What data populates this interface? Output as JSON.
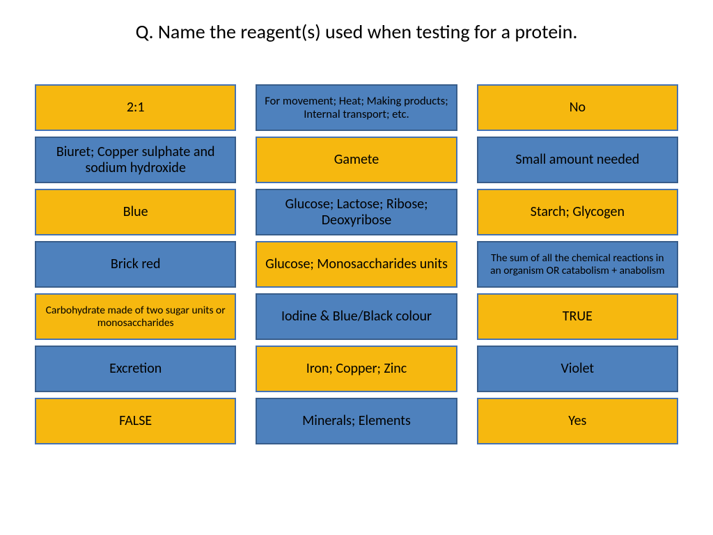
{
  "title": "Q. Name the reagent(s) used when testing for a protein.",
  "colors": {
    "yellow_bg": "#f6b80f",
    "yellow_border": "#4472b4",
    "blue_bg": "#4e81bd",
    "blue_border": "#385d8a"
  },
  "columns": [
    [
      {
        "text": "2:1",
        "bg": "#f6b80f",
        "border": "#4472b4",
        "size": "normal"
      },
      {
        "text": "Biuret; Copper sulphate and sodium hydroxide",
        "bg": "#4e81bd",
        "border": "#385d8a",
        "size": "normal"
      },
      {
        "text": "Blue",
        "bg": "#f6b80f",
        "border": "#4472b4",
        "size": "normal"
      },
      {
        "text": "Brick red",
        "bg": "#4e81bd",
        "border": "#385d8a",
        "size": "normal"
      },
      {
        "text": "Carbohydrate made of two sugar units or monosaccharides",
        "bg": "#f6b80f",
        "border": "#4472b4",
        "size": "xsmall"
      },
      {
        "text": "Excretion",
        "bg": "#4e81bd",
        "border": "#385d8a",
        "size": "normal"
      },
      {
        "text": "FALSE",
        "bg": "#f6b80f",
        "border": "#4472b4",
        "size": "normal"
      }
    ],
    [
      {
        "text": "For movement; Heat; Making products; Internal transport; etc.",
        "bg": "#4e81bd",
        "border": "#385d8a",
        "size": "small"
      },
      {
        "text": "Gamete",
        "bg": "#f6b80f",
        "border": "#4472b4",
        "size": "normal"
      },
      {
        "text": "Glucose; Lactose; Ribose; Deoxyribose",
        "bg": "#4e81bd",
        "border": "#385d8a",
        "size": "normal"
      },
      {
        "text": "Glucose; Monosaccharides units",
        "bg": "#f6b80f",
        "border": "#4472b4",
        "size": "normal"
      },
      {
        "text": "Iodine & Blue/Black colour",
        "bg": "#4e81bd",
        "border": "#385d8a",
        "size": "normal"
      },
      {
        "text": "Iron; Copper; Zinc",
        "bg": "#f6b80f",
        "border": "#4472b4",
        "size": "normal"
      },
      {
        "text": "Minerals; Elements",
        "bg": "#4e81bd",
        "border": "#385d8a",
        "size": "normal"
      }
    ],
    [
      {
        "text": "No",
        "bg": "#f6b80f",
        "border": "#4472b4",
        "size": "normal"
      },
      {
        "text": "Small amount needed",
        "bg": "#4e81bd",
        "border": "#385d8a",
        "size": "normal"
      },
      {
        "text": "Starch; Glycogen",
        "bg": "#f6b80f",
        "border": "#4472b4",
        "size": "normal"
      },
      {
        "text": "The sum of all the chemical reactions in an organism OR catabolism + anabolism",
        "bg": "#4e81bd",
        "border": "#385d8a",
        "size": "xsmall"
      },
      {
        "text": "TRUE",
        "bg": "#f6b80f",
        "border": "#4472b4",
        "size": "normal"
      },
      {
        "text": "Violet",
        "bg": "#4e81bd",
        "border": "#385d8a",
        "size": "normal"
      },
      {
        "text": "Yes",
        "bg": "#f6b80f",
        "border": "#4472b4",
        "size": "normal"
      }
    ]
  ]
}
